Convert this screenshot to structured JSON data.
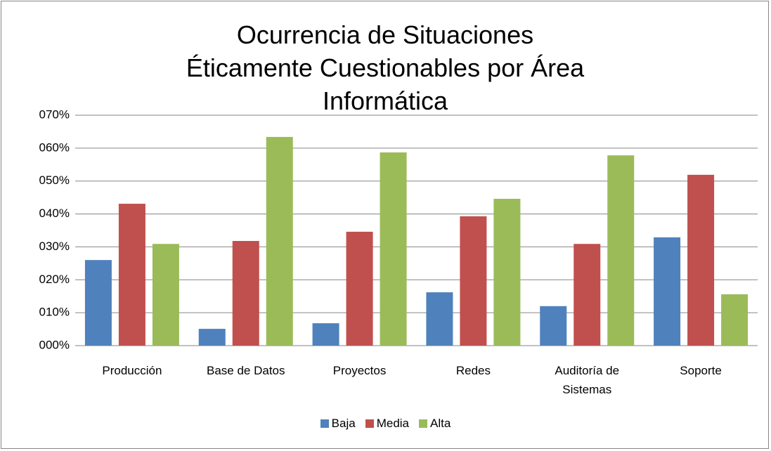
{
  "chart_data": {
    "type": "bar",
    "title": "Ocurrencia de Situaciones Éticamente Cuestionables por Área Informática",
    "categories": [
      "Producción",
      "Base de Datos",
      "Proyectos",
      "Redes",
      "Auditoría de Sistemas",
      "Soporte"
    ],
    "series": [
      {
        "name": "Baja",
        "color": "#4f81bd",
        "values": [
          26.0,
          5.1,
          6.8,
          16.2,
          12.0,
          32.9
        ]
      },
      {
        "name": "Media",
        "color": "#c0504d",
        "values": [
          43.1,
          31.8,
          34.6,
          39.3,
          30.9,
          51.9
        ]
      },
      {
        "name": "Alta",
        "color": "#9bbb59",
        "values": [
          30.9,
          63.4,
          58.7,
          44.6,
          57.8,
          15.6
        ]
      }
    ],
    "ylim": [
      0,
      70
    ],
    "yticks": [
      {
        "value": 0,
        "label": "000%"
      },
      {
        "value": 10,
        "label": "010%"
      },
      {
        "value": 20,
        "label": "020%"
      },
      {
        "value": 30,
        "label": "030%"
      },
      {
        "value": 40,
        "label": "040%"
      },
      {
        "value": 50,
        "label": "050%"
      },
      {
        "value": 60,
        "label": "060%"
      },
      {
        "value": 70,
        "label": "070%"
      }
    ],
    "grid": true,
    "legend": "bottom"
  }
}
